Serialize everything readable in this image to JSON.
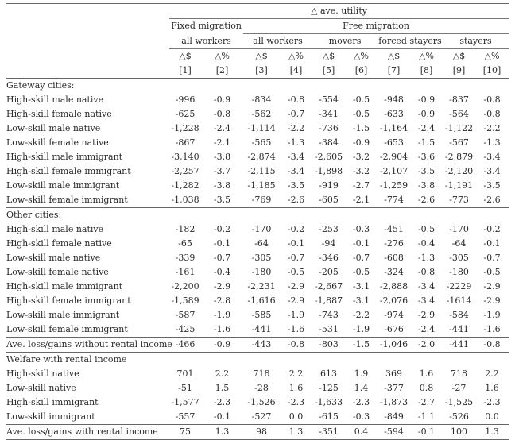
{
  "header": {
    "super": "△ ave. utility",
    "fixed": "Fixed migration",
    "free": "Free migration",
    "fixed_all": "all workers",
    "free_all": "all workers",
    "movers": "movers",
    "forced": "forced stayers",
    "stayers": "stayers",
    "units": [
      "△$",
      "△%",
      "△$",
      "△%",
      "△$",
      "△%",
      "△$",
      "△%",
      "△$",
      "△%"
    ],
    "cols": [
      "[1]",
      "[2]",
      "[3]",
      "[4]",
      "[5]",
      "[6]",
      "[7]",
      "[8]",
      "[9]",
      "[10]"
    ]
  },
  "sections": [
    {
      "title": "Gateway cities:",
      "rows": [
        {
          "label": "High-skill male native",
          "values": [
            "-996",
            "-0.9",
            "-834",
            "-0.8",
            "-554",
            "-0.5",
            "-948",
            "-0.9",
            "-837",
            "-0.8"
          ]
        },
        {
          "label": "High-skill female native",
          "values": [
            "-625",
            "-0.8",
            "-562",
            "-0.7",
            "-341",
            "-0.5",
            "-633",
            "-0.9",
            "-564",
            "-0.8"
          ]
        },
        {
          "label": "Low-skill male native",
          "values": [
            "-1,228",
            "-2.4",
            "-1,114",
            "-2.2",
            "-736",
            "-1.5",
            "-1,164",
            "-2.4",
            "-1,122",
            "-2.2"
          ]
        },
        {
          "label": "Low-skill female native",
          "values": [
            "-867",
            "-2.1",
            "-565",
            "-1.3",
            "-384",
            "-0.9",
            "-653",
            "-1.5",
            "-567",
            "-1.3"
          ]
        },
        {
          "label": "High-skill male immigrant",
          "values": [
            "-3,140",
            "-3.8",
            "-2,874",
            "-3.4",
            "-2,605",
            "-3.2",
            "-2,904",
            "-3.6",
            "-2,879",
            "-3.4"
          ]
        },
        {
          "label": "High-skill female immigrant",
          "values": [
            "-2,257",
            "-3.7",
            "-2,115",
            "-3.4",
            "-1,898",
            "-3.2",
            "-2,107",
            "-3.5",
            "-2,120",
            "-3.4"
          ]
        },
        {
          "label": "Low-skill male immigrant",
          "values": [
            "-1,282",
            "-3.8",
            "-1,185",
            "-3.5",
            "-919",
            "-2.7",
            "-1,259",
            "-3.8",
            "-1,191",
            "-3.5"
          ]
        },
        {
          "label": "Low-skill female immigrant",
          "values": [
            "-1,038",
            "-3.5",
            "-769",
            "-2.6",
            "-605",
            "-2.1",
            "-774",
            "-2.6",
            "-773",
            "-2.6"
          ]
        }
      ]
    },
    {
      "title": "Other cities:",
      "rows": [
        {
          "label": "High-skill male native",
          "values": [
            "-182",
            "-0.2",
            "-170",
            "-0.2",
            "-253",
            "-0.3",
            "-451",
            "-0.5",
            "-170",
            "-0.2"
          ]
        },
        {
          "label": "High-skill female native",
          "values": [
            "-65",
            "-0.1",
            "-64",
            "-0.1",
            "-94",
            "-0.1",
            "-276",
            "-0.4",
            "-64",
            "-0.1"
          ]
        },
        {
          "label": "Low-skill male native",
          "values": [
            "-339",
            "-0.7",
            "-305",
            "-0.7",
            "-346",
            "-0.7",
            "-608",
            "-1.3",
            "-305",
            "-0.7"
          ]
        },
        {
          "label": "Low-skill female native",
          "values": [
            "-161",
            "-0.4",
            "-180",
            "-0.5",
            "-205",
            "-0.5",
            "-324",
            "-0.8",
            "-180",
            "-0.5"
          ]
        },
        {
          "label": "High-skill male immigrant",
          "values": [
            "-2,200",
            "-2.9",
            "-2,231",
            "-2.9",
            "-2,667",
            "-3.1",
            "-2,888",
            "-3.4",
            "-2229",
            "-2.9"
          ]
        },
        {
          "label": "High-skill female immigrant",
          "values": [
            "-1,589",
            "-2.8",
            "-1,616",
            "-2.9",
            "-1,887",
            "-3.1",
            "-2,076",
            "-3.4",
            "-1614",
            "-2.9"
          ]
        },
        {
          "label": "Low-skill male immigrant",
          "values": [
            "-587",
            "-1.9",
            "-585",
            "-1.9",
            "-743",
            "-2.2",
            "-974",
            "-2.9",
            "-584",
            "-1.9"
          ]
        },
        {
          "label": "Low-skill female immigrant",
          "values": [
            "-425",
            "-1.6",
            "-441",
            "-1.6",
            "-531",
            "-1.9",
            "-676",
            "-2.4",
            "-441",
            "-1.6"
          ]
        }
      ]
    }
  ],
  "avg_without": {
    "label": "Ave. loss/gains without rental income",
    "values": [
      "-466",
      "-0.9",
      "-443",
      "-0.8",
      "-803",
      "-1.5",
      "-1,046",
      "-2.0",
      "-441",
      "-0.8"
    ]
  },
  "rental": {
    "title": "Welfare with rental income",
    "rows": [
      {
        "label": "High-skill native",
        "values": [
          "701",
          "2.2",
          "718",
          "2.2",
          "613",
          "1.9",
          "369",
          "1.6",
          "718",
          "2.2"
        ]
      },
      {
        "label": "Low-skill native",
        "values": [
          "-51",
          "1.5",
          "-28",
          "1.6",
          "-125",
          "1.4",
          "-377",
          "0.8",
          "-27",
          "1.6"
        ]
      },
      {
        "label": "High-skill immigrant",
        "values": [
          "-1,577",
          "-2.3",
          "-1,526",
          "-2.3",
          "-1,633",
          "-2.3",
          "-1,873",
          "-2.7",
          "-1,525",
          "-2.3"
        ]
      },
      {
        "label": "Low-skill immigrant",
        "values": [
          "-557",
          "-0.1",
          "-527",
          "0.0",
          "-615",
          "-0.3",
          "-849",
          "-1.1",
          "-526",
          "0.0"
        ]
      }
    ]
  },
  "avg_with": {
    "label": "Ave. loss/gains with rental income",
    "values": [
      "75",
      "1.3",
      "98",
      "1.3",
      "-351",
      "0.4",
      "-594",
      "-0.1",
      "100",
      "1.3"
    ]
  }
}
